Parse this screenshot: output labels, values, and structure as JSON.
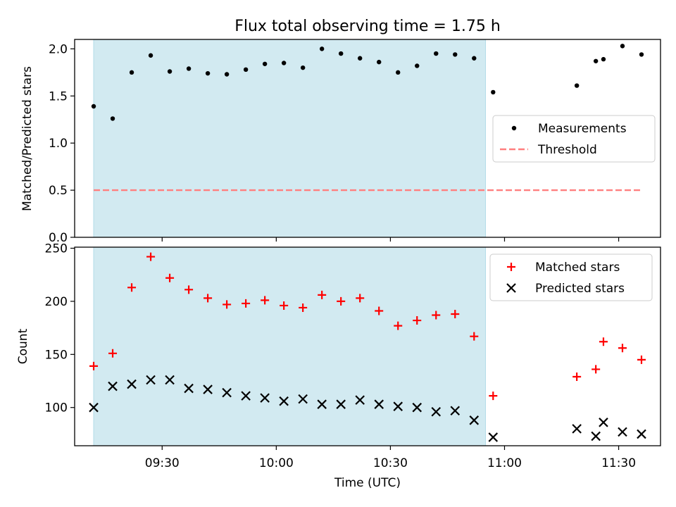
{
  "title": "Flux total observing time = 1.75 h",
  "colors": {
    "shade": "#add8e6",
    "measurement": "#000000",
    "threshold": "#ff7f7f",
    "matched": "#ff0000",
    "predicted": "#000000"
  },
  "chart_data": [
    {
      "type": "scatter",
      "ylabel": "Matched/Predicted stars",
      "xlabel": "",
      "xlim": [
        "09:07",
        "11:41"
      ],
      "ylim": [
        0,
        2.1
      ],
      "yticks": [
        "0.0",
        "0.5",
        "1.0",
        "1.5",
        "2.0"
      ],
      "shaded_interval": [
        "09:12",
        "10:55"
      ],
      "legend_position": "center-right",
      "series": [
        {
          "name": "Measurements",
          "marker": "dot",
          "x": [
            "09:12",
            "09:17",
            "09:22",
            "09:27",
            "09:32",
            "09:37",
            "09:42",
            "09:47",
            "09:52",
            "09:57",
            "10:02",
            "10:07",
            "10:12",
            "10:17",
            "10:22",
            "10:27",
            "10:32",
            "10:37",
            "10:42",
            "10:47",
            "10:52",
            "10:57",
            "11:19",
            "11:24",
            "11:26",
            "11:31",
            "11:36"
          ],
          "y": [
            1.39,
            1.26,
            1.75,
            1.93,
            1.76,
            1.79,
            1.74,
            1.73,
            1.78,
            1.84,
            1.85,
            1.8,
            2.0,
            1.95,
            1.9,
            1.86,
            1.75,
            1.82,
            1.95,
            1.94,
            1.9,
            1.54,
            1.61,
            1.87,
            1.89,
            2.03,
            1.94
          ]
        },
        {
          "name": "Threshold",
          "style": "dashed",
          "x": [
            "09:12",
            "11:36"
          ],
          "y": [
            0.5,
            0.5
          ]
        }
      ]
    },
    {
      "type": "scatter",
      "ylabel": "Count",
      "xlabel": "Time (UTC)",
      "xlim": [
        "09:07",
        "11:41"
      ],
      "ylim": [
        64,
        251
      ],
      "yticks": [
        "100",
        "150",
        "200",
        "250"
      ],
      "xticks": [
        "09:30",
        "10:00",
        "10:30",
        "11:00",
        "11:30"
      ],
      "shaded_interval": [
        "09:12",
        "10:55"
      ],
      "legend_position": "top-right",
      "series": [
        {
          "name": "Matched stars",
          "marker": "plus",
          "x": [
            "09:12",
            "09:17",
            "09:22",
            "09:27",
            "09:32",
            "09:37",
            "09:42",
            "09:47",
            "09:52",
            "09:57",
            "10:02",
            "10:07",
            "10:12",
            "10:17",
            "10:22",
            "10:27",
            "10:32",
            "10:37",
            "10:42",
            "10:47",
            "10:52",
            "10:57",
            "11:19",
            "11:24",
            "11:26",
            "11:31",
            "11:36"
          ],
          "y": [
            139,
            151,
            213,
            242,
            222,
            211,
            203,
            197,
            198,
            201,
            196,
            194,
            206,
            200,
            203,
            191,
            177,
            182,
            187,
            188,
            167,
            111,
            129,
            136,
            162,
            156,
            145
          ]
        },
        {
          "name": "Predicted stars",
          "marker": "x",
          "x": [
            "09:12",
            "09:17",
            "09:22",
            "09:27",
            "09:32",
            "09:37",
            "09:42",
            "09:47",
            "09:52",
            "09:57",
            "10:02",
            "10:07",
            "10:12",
            "10:17",
            "10:22",
            "10:27",
            "10:32",
            "10:37",
            "10:42",
            "10:47",
            "10:52",
            "10:57",
            "11:19",
            "11:24",
            "11:26",
            "11:31",
            "11:36"
          ],
          "y": [
            100,
            120,
            122,
            126,
            126,
            118,
            117,
            114,
            111,
            109,
            106,
            108,
            103,
            103,
            107,
            103,
            101,
            100,
            96,
            97,
            88,
            72,
            80,
            73,
            86,
            77,
            75
          ]
        }
      ]
    }
  ]
}
